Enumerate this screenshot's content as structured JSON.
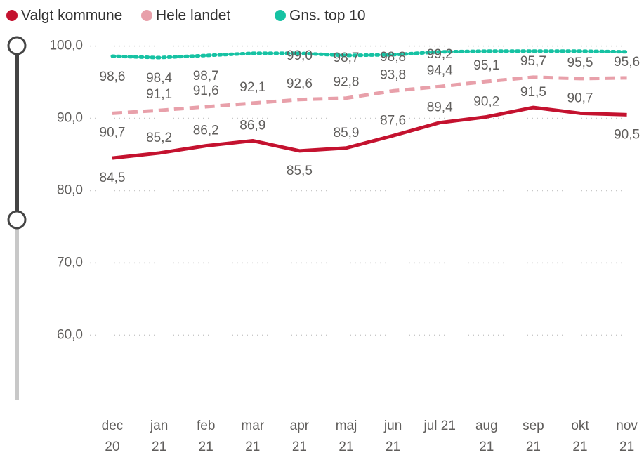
{
  "chart_data": {
    "type": "line",
    "categories": [
      [
        "dec",
        "20"
      ],
      [
        "jan",
        "21"
      ],
      [
        "feb",
        "21"
      ],
      [
        "mar",
        "21"
      ],
      [
        "apr",
        "21"
      ],
      [
        "maj",
        "21"
      ],
      [
        "jun",
        "21"
      ],
      [
        "jul 21"
      ],
      [
        "aug",
        "21"
      ],
      [
        "sep",
        "21"
      ],
      [
        "okt",
        "21"
      ],
      [
        "nov",
        "21"
      ]
    ],
    "series": [
      {
        "name": "Valgt kommune",
        "color": "#c4122f",
        "style": "solid",
        "values": [
          84.5,
          85.2,
          86.2,
          86.9,
          85.5,
          85.9,
          87.6,
          89.4,
          90.2,
          91.5,
          90.7,
          90.5
        ],
        "value_labels": [
          "84,5",
          "85,2",
          "86,2",
          "86,9",
          "85,5",
          "85,9",
          "87,6",
          "89,4",
          "90,2",
          "91,5",
          "90,7",
          "90,5"
        ]
      },
      {
        "name": "Hele landet",
        "color": "#e8a0aa",
        "style": "dashed",
        "values": [
          90.7,
          91.1,
          91.6,
          92.1,
          92.6,
          92.8,
          93.8,
          94.4,
          95.1,
          95.7,
          95.5,
          95.6
        ],
        "value_labels": [
          "90,7",
          "91,1",
          "91,6",
          "92,1",
          "92,6",
          "92,8",
          "93,8",
          "94,4",
          "95,1",
          "95,7",
          "95,5",
          "95,6"
        ]
      },
      {
        "name": "Gns. top 10",
        "color": "#16c2a3",
        "style": "dotted",
        "values": [
          98.6,
          98.4,
          98.7,
          99.0,
          99.0,
          98.7,
          98.8,
          99.2,
          99.3,
          99.3,
          99.3,
          99.2
        ],
        "value_labels": [
          "98,6",
          "98,4",
          "98,7",
          null,
          "99,0",
          "98,7",
          "98,8",
          "99,2",
          null,
          null,
          null,
          null
        ]
      }
    ],
    "ylim": [
      51,
      102
    ],
    "yticks": [
      {
        "value": 60,
        "label": "60,0"
      },
      {
        "value": 70,
        "label": "70,0"
      },
      {
        "value": 80,
        "label": "80,0"
      },
      {
        "value": 90,
        "label": "90,0"
      },
      {
        "value": 100,
        "label": "100,0"
      }
    ],
    "grid": true,
    "legend": "top-left"
  }
}
